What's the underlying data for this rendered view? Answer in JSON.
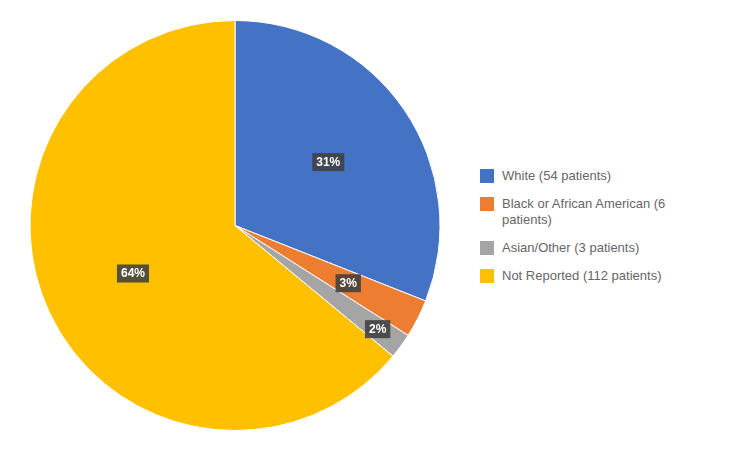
{
  "chart_data": {
    "type": "pie",
    "categories": [
      "White (54 patients)",
      "Black or African American (6\n patients)",
      "Asian/Other (3 patients)",
      "Not Reported (112 patients)"
    ],
    "values": [
      31,
      3,
      2,
      64
    ],
    "value_labels": [
      "31%",
      "3%",
      "2%",
      "64%"
    ],
    "colors": [
      "#4472C4",
      "#ED7D31",
      "#A5A5A5",
      "#FFC000"
    ],
    "data_labels": true,
    "legend": "right"
  }
}
